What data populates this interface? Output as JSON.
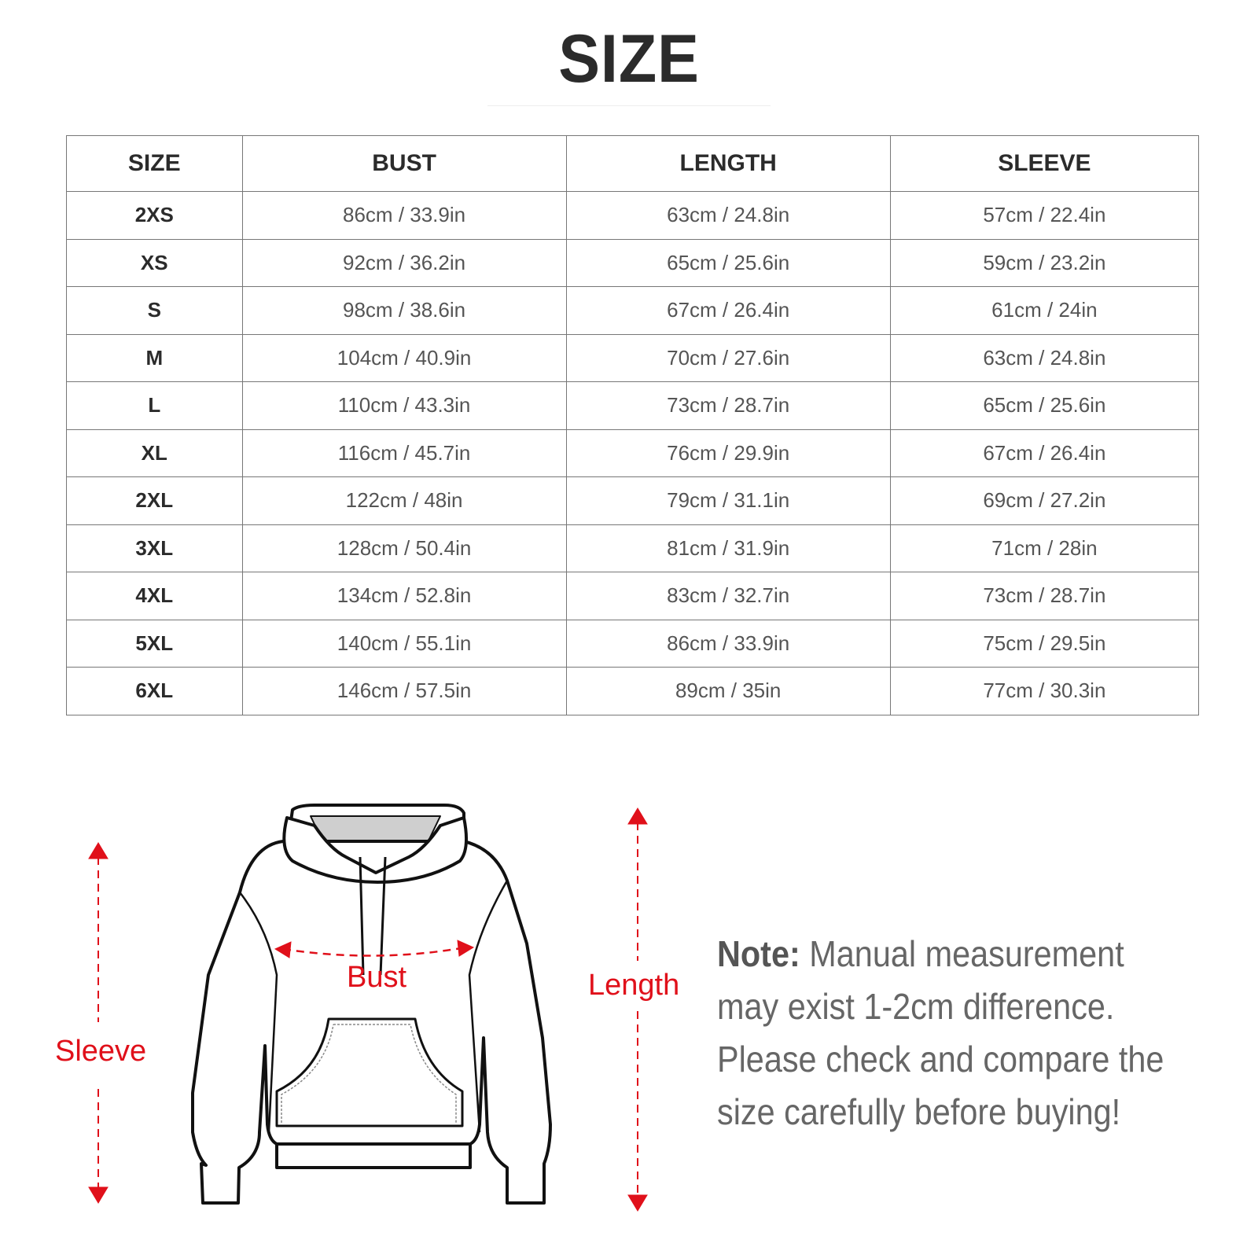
{
  "title": "SIZE",
  "table": {
    "headers": [
      "SIZE",
      "BUST",
      "LENGTH",
      "SLEEVE"
    ],
    "rows": [
      [
        "2XS",
        "86cm / 33.9in",
        "63cm / 24.8in",
        "57cm / 22.4in"
      ],
      [
        "XS",
        "92cm / 36.2in",
        "65cm / 25.6in",
        "59cm / 23.2in"
      ],
      [
        "S",
        "98cm / 38.6in",
        "67cm / 26.4in",
        "61cm / 24in"
      ],
      [
        "M",
        "104cm / 40.9in",
        "70cm / 27.6in",
        "63cm / 24.8in"
      ],
      [
        "L",
        "110cm / 43.3in",
        "73cm / 28.7in",
        "65cm / 25.6in"
      ],
      [
        "XL",
        "116cm / 45.7in",
        "76cm / 29.9in",
        "67cm / 26.4in"
      ],
      [
        "2XL",
        "122cm / 48in",
        "79cm / 31.1in",
        "69cm / 27.2in"
      ],
      [
        "3XL",
        "128cm / 50.4in",
        "81cm / 31.9in",
        "71cm / 28in"
      ],
      [
        "4XL",
        "134cm / 52.8in",
        "83cm / 32.7in",
        "73cm / 28.7in"
      ],
      [
        "5XL",
        "140cm / 55.1in",
        "86cm / 33.9in",
        "75cm / 29.5in"
      ],
      [
        "6XL",
        "146cm / 57.5in",
        "89cm / 35in",
        "77cm / 30.3in"
      ]
    ]
  },
  "diagram": {
    "labels": {
      "bust": "Bust",
      "length": "Length",
      "sleeve": "Sleeve"
    },
    "accent_color": "#e0101a"
  },
  "note": {
    "label": "Note:",
    "text": "Manual measurement may exist 1-2cm difference. Please check and compare the size carefully before buying!"
  }
}
